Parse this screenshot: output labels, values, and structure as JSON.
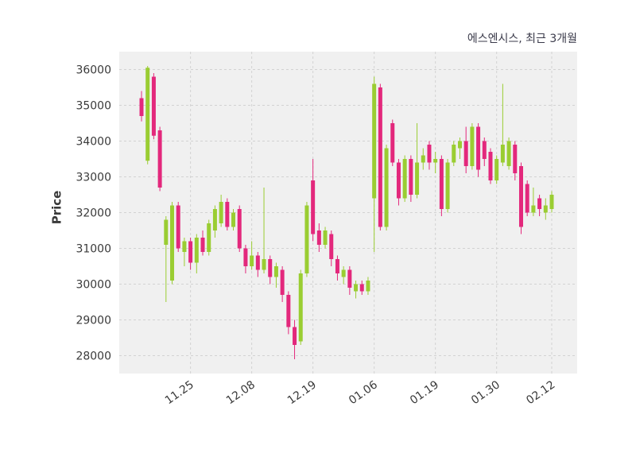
{
  "chart_data": {
    "type": "candlestick",
    "title": "에스엔시스, 최근 3개월",
    "ylabel": "Price",
    "ylim": [
      27500,
      36500
    ],
    "yticks": [
      28000,
      29000,
      30000,
      31000,
      32000,
      33000,
      34000,
      35000,
      36000
    ],
    "xticks": [
      {
        "index": 8,
        "label": "11.25"
      },
      {
        "index": 18,
        "label": "12.08"
      },
      {
        "index": 28,
        "label": "12.19"
      },
      {
        "index": 38,
        "label": "01.06"
      },
      {
        "index": 48,
        "label": "01.19"
      },
      {
        "index": 58,
        "label": "01.30"
      },
      {
        "index": 67,
        "label": "02.12"
      }
    ],
    "up_color": "#9ACD32",
    "down_color": "#E3287C",
    "plot_background": "#f0f0f0",
    "grid_color": "#d2d2d2",
    "text_color": "#3a3a3a",
    "candles": [
      [
        35200,
        35400,
        34550,
        34700
      ],
      [
        33450,
        36100,
        33350,
        36050
      ],
      [
        35800,
        35900,
        34050,
        34150
      ],
      [
        34300,
        34400,
        32600,
        32700
      ],
      [
        31100,
        31900,
        29500,
        31800
      ],
      [
        30100,
        32300,
        30000,
        32200
      ],
      [
        32200,
        32300,
        30900,
        31000
      ],
      [
        30900,
        31300,
        30500,
        31200
      ],
      [
        31200,
        31300,
        30400,
        30600
      ],
      [
        30600,
        31400,
        30300,
        31300
      ],
      [
        31300,
        31500,
        30800,
        30900
      ],
      [
        30900,
        31800,
        30800,
        31700
      ],
      [
        31500,
        32200,
        31300,
        32100
      ],
      [
        31700,
        32500,
        31600,
        32300
      ],
      [
        32300,
        32400,
        31500,
        31600
      ],
      [
        31600,
        32100,
        31500,
        32000
      ],
      [
        32100,
        32200,
        30900,
        31000
      ],
      [
        31000,
        31100,
        30300,
        30500
      ],
      [
        30500,
        31200,
        30400,
        30800
      ],
      [
        30800,
        30900,
        30200,
        30400
      ],
      [
        30400,
        32700,
        30300,
        30700
      ],
      [
        30700,
        30800,
        30000,
        30200
      ],
      [
        30200,
        30600,
        29900,
        30500
      ],
      [
        30400,
        30500,
        29500,
        29700
      ],
      [
        29700,
        29800,
        28600,
        28800
      ],
      [
        28800,
        29000,
        27900,
        28300
      ],
      [
        28400,
        30400,
        28300,
        30300
      ],
      [
        30300,
        32300,
        30200,
        32200
      ],
      [
        32900,
        33500,
        31200,
        31400
      ],
      [
        31500,
        31700,
        30900,
        31100
      ],
      [
        31100,
        31600,
        31000,
        31500
      ],
      [
        31400,
        31500,
        30500,
        30700
      ],
      [
        30700,
        30800,
        30100,
        30300
      ],
      [
        30200,
        30500,
        30000,
        30400
      ],
      [
        30400,
        30500,
        29700,
        29900
      ],
      [
        29800,
        30100,
        29600,
        30000
      ],
      [
        30000,
        30100,
        29700,
        29800
      ],
      [
        29800,
        30200,
        29700,
        30100
      ],
      [
        32400,
        35800,
        30900,
        35600
      ],
      [
        35500,
        35600,
        31500,
        31600
      ],
      [
        31600,
        33900,
        31500,
        33800
      ],
      [
        34500,
        34600,
        33300,
        33400
      ],
      [
        33400,
        33500,
        32200,
        32400
      ],
      [
        32400,
        33600,
        32300,
        33500
      ],
      [
        33500,
        33600,
        32300,
        32500
      ],
      [
        32500,
        34500,
        32400,
        33400
      ],
      [
        33400,
        33800,
        33200,
        33600
      ],
      [
        33900,
        34000,
        33200,
        33400
      ],
      [
        33400,
        33700,
        33100,
        33500
      ],
      [
        33500,
        33600,
        31900,
        32100
      ],
      [
        32100,
        33500,
        32000,
        33400
      ],
      [
        33400,
        34000,
        33300,
        33900
      ],
      [
        33800,
        34100,
        33500,
        34000
      ],
      [
        34000,
        34400,
        33100,
        33300
      ],
      [
        33300,
        34500,
        33200,
        34400
      ],
      [
        34400,
        34500,
        33000,
        33200
      ],
      [
        34000,
        34100,
        33300,
        33500
      ],
      [
        33700,
        33800,
        32800,
        32900
      ],
      [
        32900,
        33600,
        32800,
        33500
      ],
      [
        33400,
        35600,
        33300,
        33900
      ],
      [
        33300,
        34100,
        33200,
        34000
      ],
      [
        33900,
        34000,
        32900,
        33100
      ],
      [
        33300,
        33400,
        31400,
        31600
      ],
      [
        32800,
        32900,
        31900,
        32000
      ],
      [
        32000,
        32700,
        31900,
        32200
      ],
      [
        32400,
        32500,
        31900,
        32100
      ],
      [
        32000,
        32400,
        31800,
        32200
      ],
      [
        32100,
        32600,
        32000,
        32500
      ]
    ]
  }
}
